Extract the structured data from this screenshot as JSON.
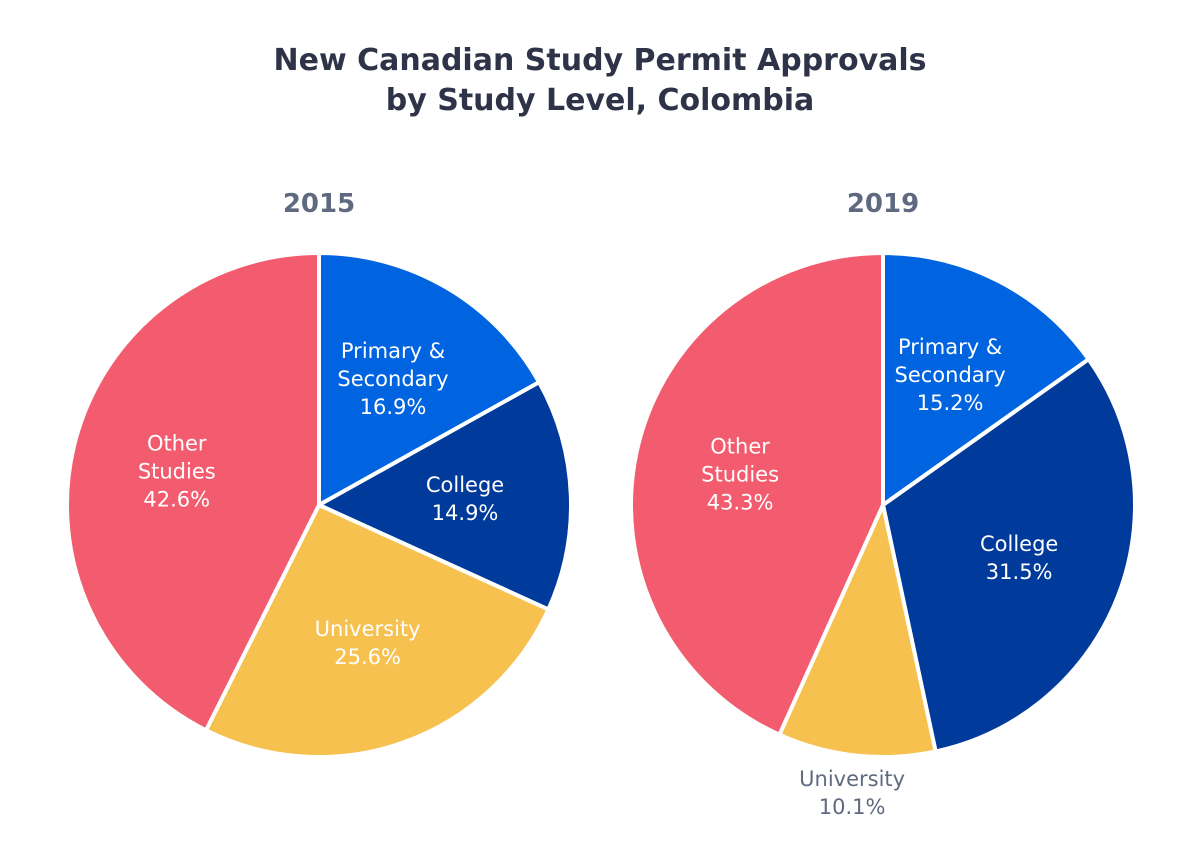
{
  "chart_data": [
    {
      "type": "pie",
      "title": "New Canadian Study Permit Approvals by Study Level, Colombia",
      "title_lines": [
        "New Canadian Study Permit Approvals",
        "by Study Level, Colombia"
      ],
      "subtitle": "2015",
      "categories": [
        "Primary & Secondary",
        "College",
        "University",
        "Other Studies"
      ],
      "values": [
        16.9,
        14.9,
        25.6,
        42.6
      ],
      "value_labels": [
        "16.9%",
        "14.9%",
        "25.6%",
        "42.6%"
      ],
      "colors": [
        "#0064e1",
        "#003a9b",
        "#f6c14e",
        "#f25c6e"
      ]
    },
    {
      "type": "pie",
      "subtitle": "2019",
      "categories": [
        "Primary & Secondary",
        "College",
        "University",
        "Other Studies"
      ],
      "values": [
        15.2,
        31.5,
        10.1,
        43.3
      ],
      "value_labels": [
        "15.2%",
        "31.5%",
        "10.1%",
        "43.3%"
      ],
      "colors": [
        "#0064e1",
        "#003a9b",
        "#f6c14e",
        "#f25c6e"
      ]
    }
  ]
}
